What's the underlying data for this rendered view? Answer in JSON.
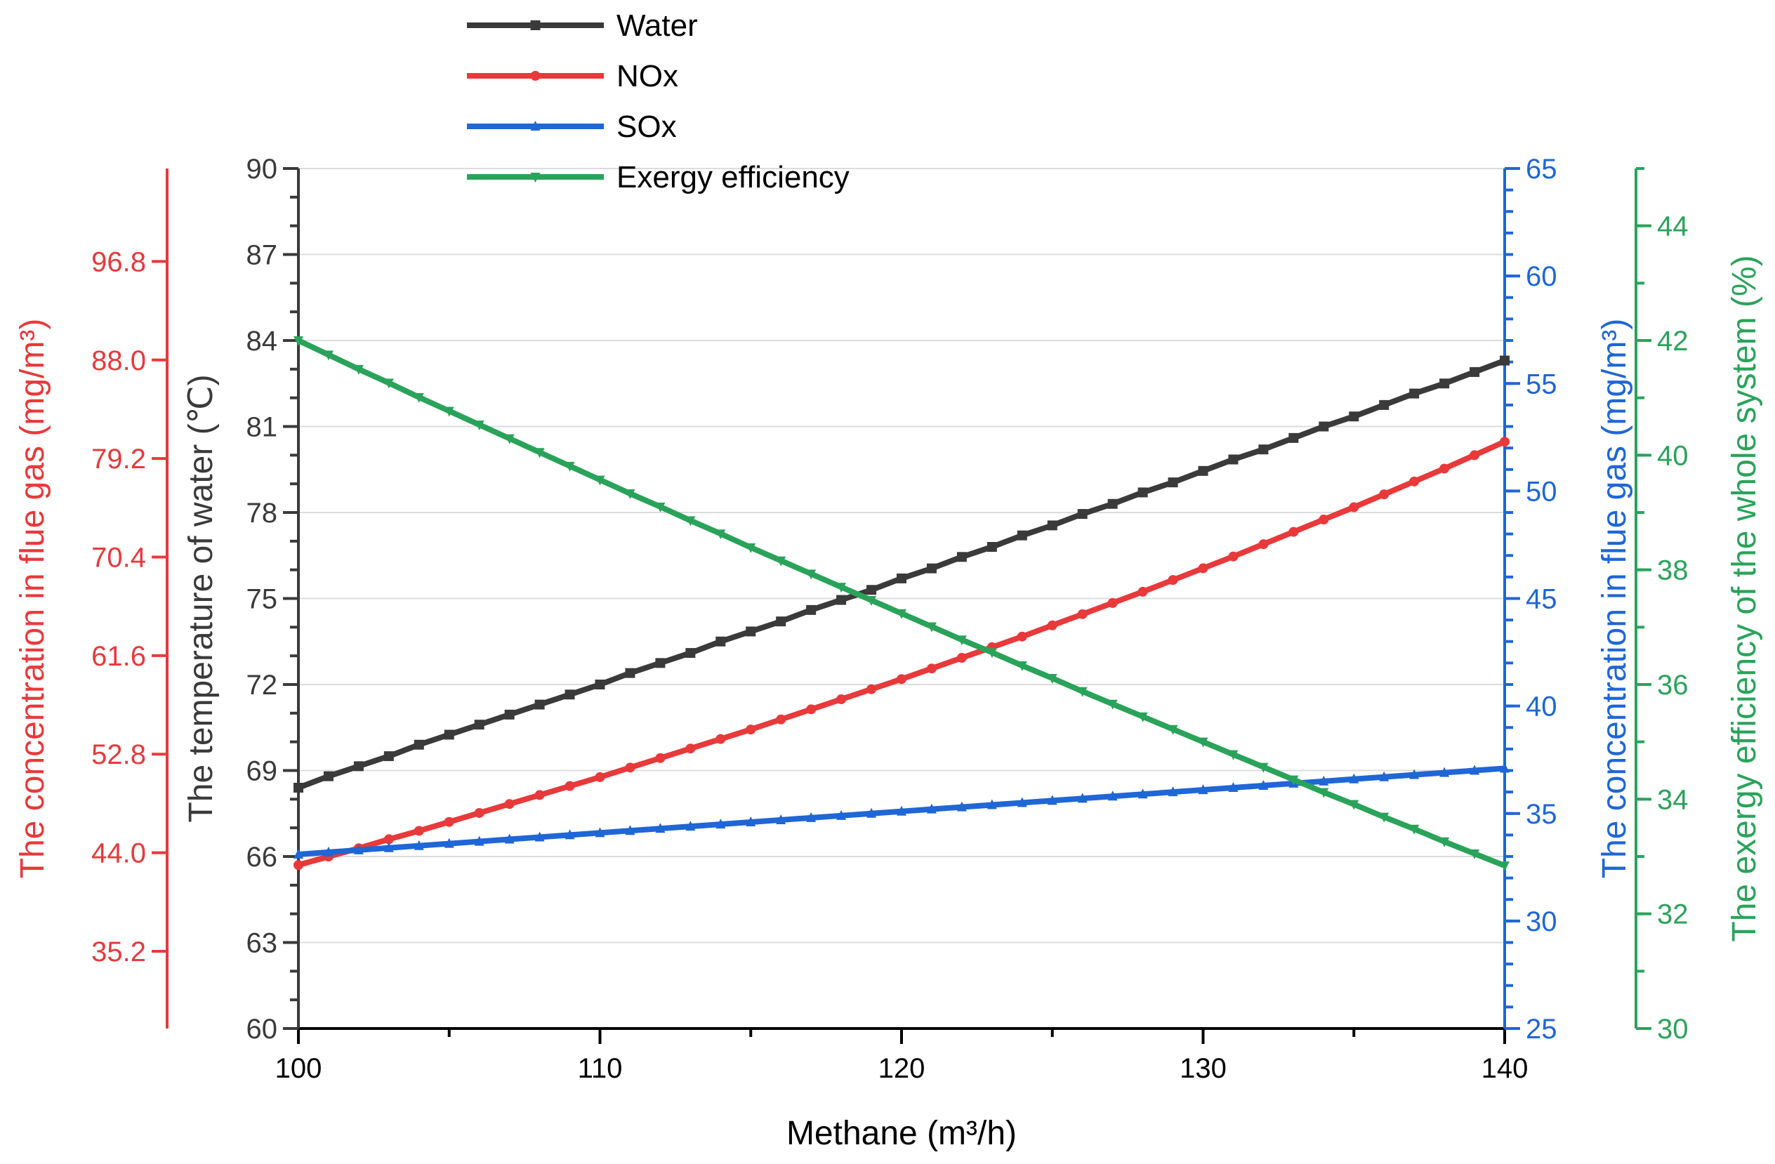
{
  "chart_data": {
    "type": "line",
    "title": "",
    "xlabel": "Methane (m³/h)",
    "xlim": [
      100,
      140
    ],
    "xticks": [
      100,
      110,
      120,
      130,
      140
    ],
    "x": [
      100,
      101,
      102,
      103,
      104,
      105,
      106,
      107,
      108,
      109,
      110,
      111,
      112,
      113,
      114,
      115,
      116,
      117,
      118,
      119,
      120,
      121,
      122,
      123,
      124,
      125,
      126,
      127,
      128,
      129,
      130,
      131,
      132,
      133,
      134,
      135,
      136,
      137,
      138,
      139,
      140
    ],
    "axes": {
      "left_outer": {
        "label": "The concentration in flue gas (mg/m³)",
        "color": "#e8393b",
        "range": [
          28.3,
          105.1
        ],
        "ticks": [
          "35.2",
          "44.0",
          "52.8",
          "61.6",
          "70.4",
          "79.2",
          "88.0",
          "96.8"
        ]
      },
      "left_inner": {
        "label": "The temperature of water (℃)",
        "color": "#3a3a3a",
        "range": [
          60,
          90
        ],
        "ticks": [
          "60",
          "63",
          "66",
          "69",
          "72",
          "75",
          "78",
          "81",
          "84",
          "87",
          "90"
        ]
      },
      "right_inner": {
        "label": "The concentration in flue gas (mg/m³)",
        "color": "#1f66d6",
        "range": [
          25,
          65
        ],
        "ticks": [
          "25",
          "30",
          "35",
          "40",
          "45",
          "50",
          "55",
          "60",
          "65"
        ]
      },
      "right_outer": {
        "label": "The exergy efficiency of the whole system (%)",
        "color": "#2aa35a",
        "range": [
          30,
          45
        ],
        "ticks": [
          "30",
          "32",
          "34",
          "36",
          "38",
          "40",
          "42",
          "44"
        ]
      }
    },
    "legend": {
      "placement": "top-center",
      "entries": [
        "Water",
        "NOx",
        "SOx",
        "Exergy efficiency"
      ]
    },
    "series": [
      {
        "name": "Water",
        "axis": "left_inner",
        "color": "#3a3a3a",
        "marker": "square",
        "values": [
          68.4,
          68.8,
          69.15,
          69.5,
          69.9,
          70.25,
          70.6,
          70.95,
          71.3,
          71.65,
          72.0,
          72.4,
          72.75,
          73.1,
          73.5,
          73.85,
          74.2,
          74.6,
          74.95,
          75.3,
          75.7,
          76.05,
          76.45,
          76.8,
          77.2,
          77.55,
          77.95,
          78.3,
          78.7,
          79.05,
          79.45,
          79.85,
          80.2,
          80.6,
          81.0,
          81.35,
          81.75,
          82.15,
          82.5,
          82.9,
          83.3
        ]
      },
      {
        "name": "NOx",
        "axis": "left_outer",
        "color": "#e8393b",
        "marker": "circle",
        "values": [
          42.9,
          43.65,
          44.4,
          45.2,
          45.95,
          46.75,
          47.55,
          48.35,
          49.15,
          49.95,
          50.75,
          51.6,
          52.45,
          53.3,
          54.15,
          55.0,
          55.9,
          56.8,
          57.7,
          58.6,
          59.5,
          60.45,
          61.4,
          62.35,
          63.3,
          64.3,
          65.3,
          66.3,
          67.3,
          68.35,
          69.4,
          70.45,
          71.55,
          72.65,
          73.75,
          74.85,
          76.0,
          77.15,
          78.3,
          79.5,
          80.7
        ]
      },
      {
        "name": "SOx",
        "axis": "right_inner",
        "color": "#1f66d6",
        "marker": "triangle-up",
        "values": [
          33.1,
          33.2,
          33.3,
          33.4,
          33.5,
          33.6,
          33.7,
          33.8,
          33.9,
          34.0,
          34.1,
          34.2,
          34.3,
          34.4,
          34.5,
          34.6,
          34.7,
          34.8,
          34.9,
          35.0,
          35.1,
          35.2,
          35.3,
          35.4,
          35.5,
          35.6,
          35.7,
          35.8,
          35.9,
          36.0,
          36.1,
          36.2,
          36.3,
          36.4,
          36.5,
          36.6,
          36.7,
          36.8,
          36.9,
          37.0,
          37.1
        ]
      },
      {
        "name": "Exergy efficiency",
        "axis": "right_outer",
        "color": "#2aa35a",
        "marker": "triangle-down",
        "values": [
          42.0,
          41.75,
          41.5,
          41.26,
          41.01,
          40.77,
          40.53,
          40.29,
          40.05,
          39.81,
          39.57,
          39.33,
          39.1,
          38.86,
          38.63,
          38.39,
          38.16,
          37.93,
          37.7,
          37.47,
          37.24,
          37.01,
          36.78,
          36.56,
          36.33,
          36.11,
          35.88,
          35.66,
          35.44,
          35.22,
          35.0,
          34.78,
          34.56,
          34.34,
          34.12,
          33.91,
          33.69,
          33.48,
          33.26,
          33.05,
          32.84
        ]
      }
    ]
  }
}
